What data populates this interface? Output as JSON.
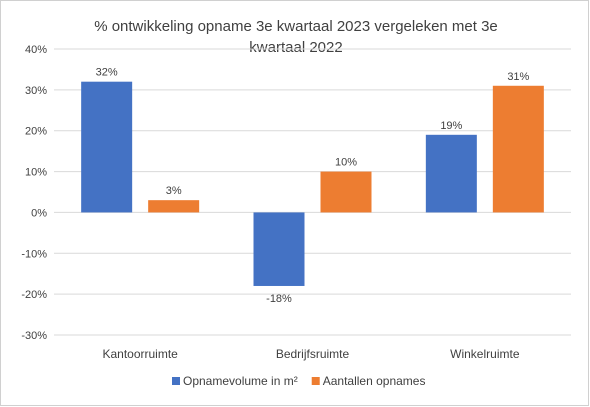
{
  "chart_data": {
    "type": "bar",
    "title_line1": "% ontwikkeling opname 3e kwartaal 2023 vergeleken met 3e",
    "title_line2": "kwartaal 2022",
    "categories": [
      "Kantoorruimte",
      "Bedrijfsruimte",
      "Winkelruimte"
    ],
    "series": [
      {
        "name": "Opnamevolume in m²",
        "values": [
          32,
          -18,
          19
        ],
        "labels": [
          "32%",
          "-18%",
          "19%"
        ],
        "color": "#4472C4"
      },
      {
        "name": "Aantallen opnames",
        "values": [
          3,
          10,
          31
        ],
        "labels": [
          "3%",
          "10%",
          "31%"
        ],
        "color": "#ED7D31"
      }
    ],
    "ylim": [
      -30,
      40
    ],
    "yticks": [
      40,
      30,
      20,
      10,
      0,
      -10,
      -20,
      -30
    ],
    "ytick_labels": [
      "40%",
      "30%",
      "20%",
      "10%",
      "0%",
      "-10%",
      "-20%",
      "-30%"
    ],
    "grid": true,
    "legend_position": "bottom",
    "gridline_color": "#d9d9d9"
  }
}
